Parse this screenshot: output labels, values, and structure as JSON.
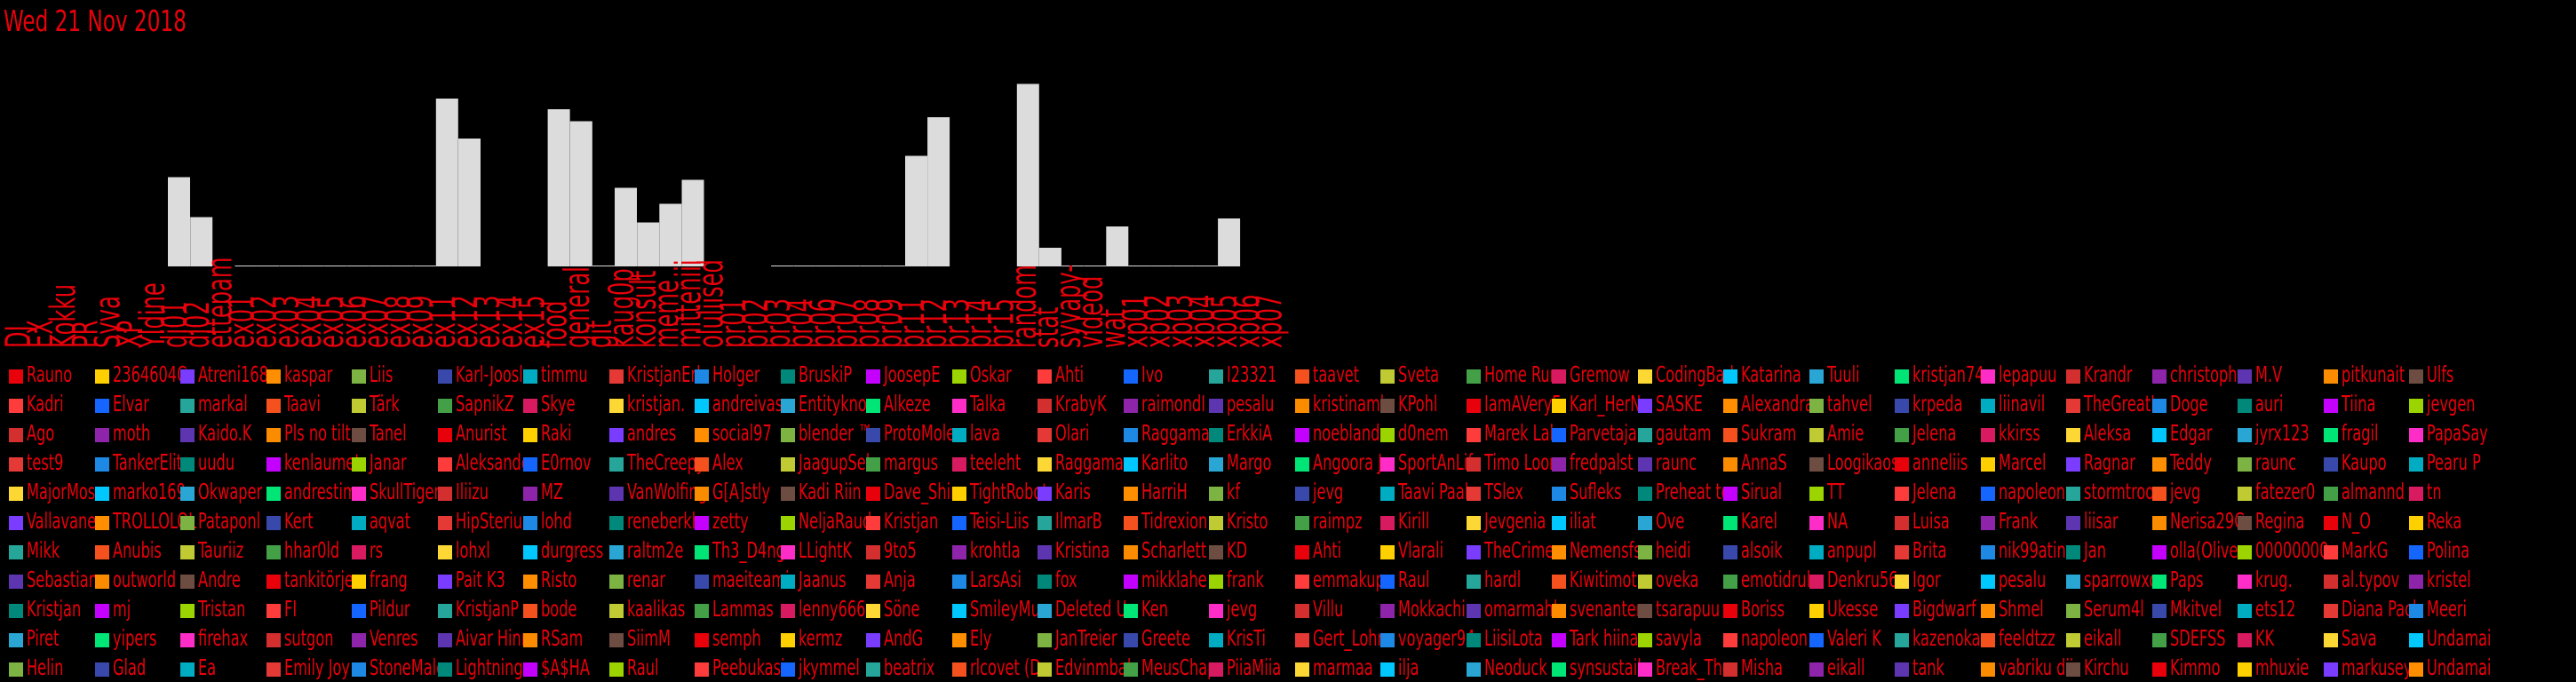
{
  "date": "Wed 21 Nov 2018",
  "chart_data": {
    "type": "bar",
    "categories": [
      "DJ",
      "EX",
      "Kokku",
      "PR",
      "Syva",
      "XP",
      "Yldine",
      "dj01",
      "dj02",
      "ettepam",
      "ex01",
      "ex02",
      "ex03",
      "ex04",
      "ex05",
      "ex06",
      "ex07",
      "ex08",
      "ex09",
      "ex11",
      "ex12",
      "ex13",
      "ex14",
      "ex15",
      "food",
      "general",
      "git",
      "kaug0p",
      "konsult",
      "meme",
      "mitteniii",
      "oluliised",
      "pr01",
      "pr02",
      "pr03",
      "pr04",
      "pr06",
      "pr07",
      "pr08",
      "pr09",
      "pr11",
      "pr12",
      "pr13",
      "pr14",
      "pr15",
      "random",
      "stat",
      "syvapy-",
      "videod",
      "wat",
      "xp01",
      "xp02",
      "xp03",
      "xp04",
      "xp05",
      "xp06",
      "xp07"
    ],
    "series": [
      {
        "values": [
          0,
          0,
          0,
          0,
          0,
          0,
          0,
          6.7,
          3.7,
          0,
          0.05,
          0.05,
          0.05,
          0.05,
          0.05,
          0.05,
          0.05,
          0.05,
          0.05,
          12.6,
          9.6,
          0,
          0,
          0,
          11.8,
          10.9,
          0.05,
          5.9,
          3.3,
          4.7,
          6.5,
          0,
          0,
          0,
          0.05,
          0.05,
          0.05,
          0.05,
          0.05,
          0.05,
          8.3,
          11.2,
          0,
          0,
          0,
          13.7,
          1.4,
          0.05,
          0.05,
          3.0,
          0.05,
          0.05,
          0.05,
          0.05,
          3.6,
          0,
          0
        ],
        "stacked": [
          [
            0,
            0
          ],
          [
            0,
            0
          ],
          [
            0,
            0
          ],
          [
            0,
            0
          ],
          [
            0,
            0
          ],
          [
            0,
            0
          ],
          [
            0,
            0
          ],
          [
            6.7,
            0
          ],
          [
            3.7,
            0
          ],
          [
            0,
            0
          ],
          [
            0.05,
            0
          ],
          [
            0.05,
            0
          ],
          [
            0.05,
            0
          ],
          [
            0.05,
            0
          ],
          [
            0.05,
            0
          ],
          [
            0.05,
            0
          ],
          [
            0.05,
            0
          ],
          [
            0.05,
            0
          ],
          [
            0.05,
            0
          ],
          [
            12.6,
            0
          ],
          [
            9.6,
            0
          ],
          [
            0,
            0
          ],
          [
            0,
            0
          ],
          [
            0,
            0
          ],
          [
            11.8,
            0
          ],
          [
            10.9,
            0
          ],
          [
            0.05,
            0
          ],
          [
            5.9,
            0
          ],
          [
            3.3,
            0
          ],
          [
            4.7,
            0
          ],
          [
            6.5,
            0
          ],
          [
            0,
            0
          ],
          [
            0,
            0
          ],
          [
            0,
            0
          ],
          [
            0.05,
            0
          ],
          [
            0.05,
            0
          ],
          [
            0.05,
            0
          ],
          [
            0.05,
            0
          ],
          [
            0.05,
            0
          ],
          [
            0.05,
            0
          ],
          [
            8.3,
            0
          ],
          [
            11.2,
            0
          ],
          [
            0,
            0
          ],
          [
            0,
            0
          ],
          [
            0,
            0
          ],
          [
            13.7,
            0
          ],
          [
            1.4,
            0
          ],
          [
            0.05,
            0
          ],
          [
            0.05,
            0
          ],
          [
            3.0,
            0
          ],
          [
            0.05,
            0
          ],
          [
            0.05,
            0
          ],
          [
            0.05,
            0
          ],
          [
            0.05,
            0
          ],
          [
            3.6,
            0
          ],
          [
            0,
            0
          ],
          [
            0,
            0
          ]
        ]
      }
    ],
    "ylim": [
      0,
      15
    ],
    "grid": false,
    "colors": {
      "bar": "#dcdcdc",
      "label": "#e8000b",
      "background": "#000000"
    }
  },
  "users": [
    [
      "Rauno",
      "Kadri",
      "Ago",
      "test9",
      "MajorMos",
      "Vallavane",
      "Mikk",
      "Sebastian",
      "Kristjan",
      "Piret",
      "Helin"
    ],
    [
      "2364604C",
      "Elvar",
      "moth",
      "TankerElit",
      "marko169",
      "TROLLOLOL",
      "Anubis",
      "outworld",
      "mj",
      "yipers",
      "Glad"
    ],
    [
      "Atreni168",
      "markal",
      "Kaido.K",
      "uudu",
      "Okwaper",
      "Pataponl",
      "Tauriiz",
      "Andre",
      "Tristan",
      "firehax",
      "Ea"
    ],
    [
      "kaspar",
      "Taavi",
      "Pls no tilt",
      "kenlaumet",
      "andrestim",
      "Kert",
      "hhar0ld",
      "tankitörje",
      "FI",
      "sutgon",
      "Emily Joy"
    ],
    [
      "Liis",
      "Tärk",
      "Tanel",
      "Janar",
      "SkullTiger",
      "aqvat",
      "rs",
      "frang",
      "Pildur",
      "Venres",
      "StoneMalo"
    ],
    [
      "Karl-Joosl",
      "SapnikZ",
      "Anurist",
      "Aleksande",
      "Iliizu",
      "HipSterius",
      "lohxl",
      "Pait K3",
      "KristjanP",
      "Aivar Hinr",
      "Lightning"
    ],
    [
      "timmu",
      "Skye",
      "Raki",
      "E0rnov",
      "MZ",
      "lohd",
      "durgress",
      "Risto",
      "bode",
      "RSam",
      "$A$HA"
    ],
    [
      "KristjanErl",
      "kristjan.",
      "andres",
      "TheCreepy",
      "VanWolfing",
      "reneberkh",
      "raltm2e",
      "renar",
      "kaalikas",
      "SiimM",
      "Raul"
    ],
    [
      "Holger",
      "andreivas",
      "social97",
      "Alex",
      "G[A]stly",
      "zetty",
      "Th3_D4ng",
      "maeiteami",
      "Lammas",
      "semph",
      "Peebukasi"
    ],
    [
      "BruskiP",
      "Entityknow",
      "blender ™",
      "JaagupSel",
      "Kadi Riin",
      "NeljaRaud",
      "LLightK",
      "Jaanus",
      "lenny666",
      "kermz",
      "jkymmel"
    ],
    [
      "JoosepE",
      "Alkeze",
      "ProtoMole",
      "margus",
      "Dave_Shin",
      "Kristjan",
      "9to5",
      "Anja",
      "Söne",
      "AndG",
      "beatrix"
    ],
    [
      "Oskar",
      "Talka",
      "lava",
      "teeleht",
      "TightRobot",
      "Teisi-Liis",
      "krohtla",
      "LarsAsi",
      "SmileyMus",
      "Ely",
      "rlcovet (D"
    ],
    [
      "Ahti",
      "KrabyK",
      "Olari",
      "Raggamas",
      "Karis",
      "IlmarB",
      "Kristina",
      "fox",
      "Deleted Us",
      "JanTreier",
      "Edvinmbal"
    ],
    [
      "Ivo",
      "raimondI",
      "Raggamas",
      "Karlito",
      "HarriH",
      "Tidrexion",
      "Scharlett",
      "mikklahe",
      "Ken",
      "Greete",
      "MeusChap"
    ],
    [
      "I23321",
      "pesalu",
      "ErkkiA",
      "Margo",
      "kf",
      "Kristo",
      "KD",
      "frank",
      "jevg",
      "KrisTi",
      "PiiaMiia"
    ],
    [
      "taavet",
      "kristinamk",
      "noeblande",
      "Angoora J",
      "jevg",
      "raimpz",
      "Ahti",
      "emmakup",
      "Villu",
      "Gert_Lohn",
      "marmaa"
    ],
    [
      "Sveta",
      "KPohl",
      "d0nem",
      "SportAnLif",
      "Taavi Paal",
      "Kirill",
      "Vlarali",
      "Raul",
      "Mokkachin",
      "voyager94",
      "ilja"
    ],
    [
      "Home Run",
      "IamAVeryF",
      "Marek Lah",
      "Timo Loon",
      "TSlex",
      "Jevgenia",
      "TheCrimer",
      "hardl",
      "omarmahl",
      "LiisiLota",
      "Neoduck"
    ],
    [
      "Gremow",
      "Karl_HerN",
      "Parvetaja",
      "fredpalst",
      "Sufleks",
      "iliat",
      "Nemensfs",
      "Kiwitimot",
      "svenanten",
      "Tark hiina",
      "synsustail"
    ],
    [
      "CodingBad",
      "SASKE",
      "gautam",
      "raunc",
      "Preheat to",
      "Ove",
      "heidi",
      "oveka",
      "tsarapuu",
      "savyla",
      "Break_The"
    ],
    [
      "Katarina",
      "Alexandra",
      "Sukram",
      "AnnaS",
      "Sirual",
      "Karel",
      "alsoik",
      "emotidrul",
      "Boriss",
      "napoleon",
      "Misha"
    ],
    [
      "Tuuli",
      "tahvel",
      "Amie",
      "Loogikaos",
      "TT",
      "NA",
      "anpupl",
      "Denkru56",
      "Ukesse",
      "Valeri K",
      "eikall"
    ],
    [
      "kristjan74",
      "krpeda",
      "Jelena",
      "anneliis",
      "Jelena",
      "Luisa",
      "Brita",
      "Igor",
      "Bigdwarf",
      "kazenokan",
      "tank"
    ],
    [
      "lepapuu",
      "liinavil",
      "kkirss",
      "Marcel",
      "napoleon",
      "Frank",
      "nik99atin",
      "pesalu",
      "Shmel",
      "feeldtzz",
      "vabriku dii"
    ],
    [
      "Krandr",
      "TheGreatL",
      "Aleksa",
      "Ragnar",
      "stormtroo",
      "liisar",
      "Jan",
      "sparrowxc",
      "Serum4l",
      "eikall",
      "Kirchu"
    ],
    [
      "christophe",
      "Doge",
      "Edgar",
      "Teddy",
      "jevg",
      "Nerisa29C",
      "olla(Oliver",
      "Paps",
      "Mkitvel",
      "SDEFSS",
      "Kimmo"
    ],
    [
      "M.V",
      "auri",
      "jyrx123",
      "raunc",
      "fatezer0",
      "Regina",
      "00000000",
      "krug.",
      "ets12",
      "KK",
      "mhuxie"
    ],
    [
      "pitkunait",
      "Tiina",
      "fragil",
      "Kaupo",
      "almannd",
      "N_O",
      "MarkG",
      "al.typov",
      "Diana Pacl",
      "Sava",
      "markusey"
    ],
    [
      "Ulfs",
      "jevgen",
      "PapaSay",
      "Pearu P",
      "tn",
      "Reka",
      "Polina",
      "kristel",
      "Meeri",
      "Undamai",
      "Undamai"
    ]
  ],
  "user_colors": [
    "#e8000b",
    "#c400ff",
    "#00c8ff",
    "#ffd000",
    "#9bd400",
    "#2aa6d4",
    "#7a3cff",
    "#ff3c3c",
    "#00e676",
    "#ff8f00",
    "#1565ff",
    "#ff2dc8",
    "#7cb342",
    "#26a69a",
    "#d32f2f",
    "#3949ab",
    "#f4511e",
    "#8e24aa",
    "#00acc1",
    "#c0ca33",
    "#5e35b1",
    "#e53935",
    "#43a047",
    "#fb8c00",
    "#1e88e5",
    "#d81b60",
    "#6d4c41",
    "#00897b",
    "#fdd835"
  ]
}
